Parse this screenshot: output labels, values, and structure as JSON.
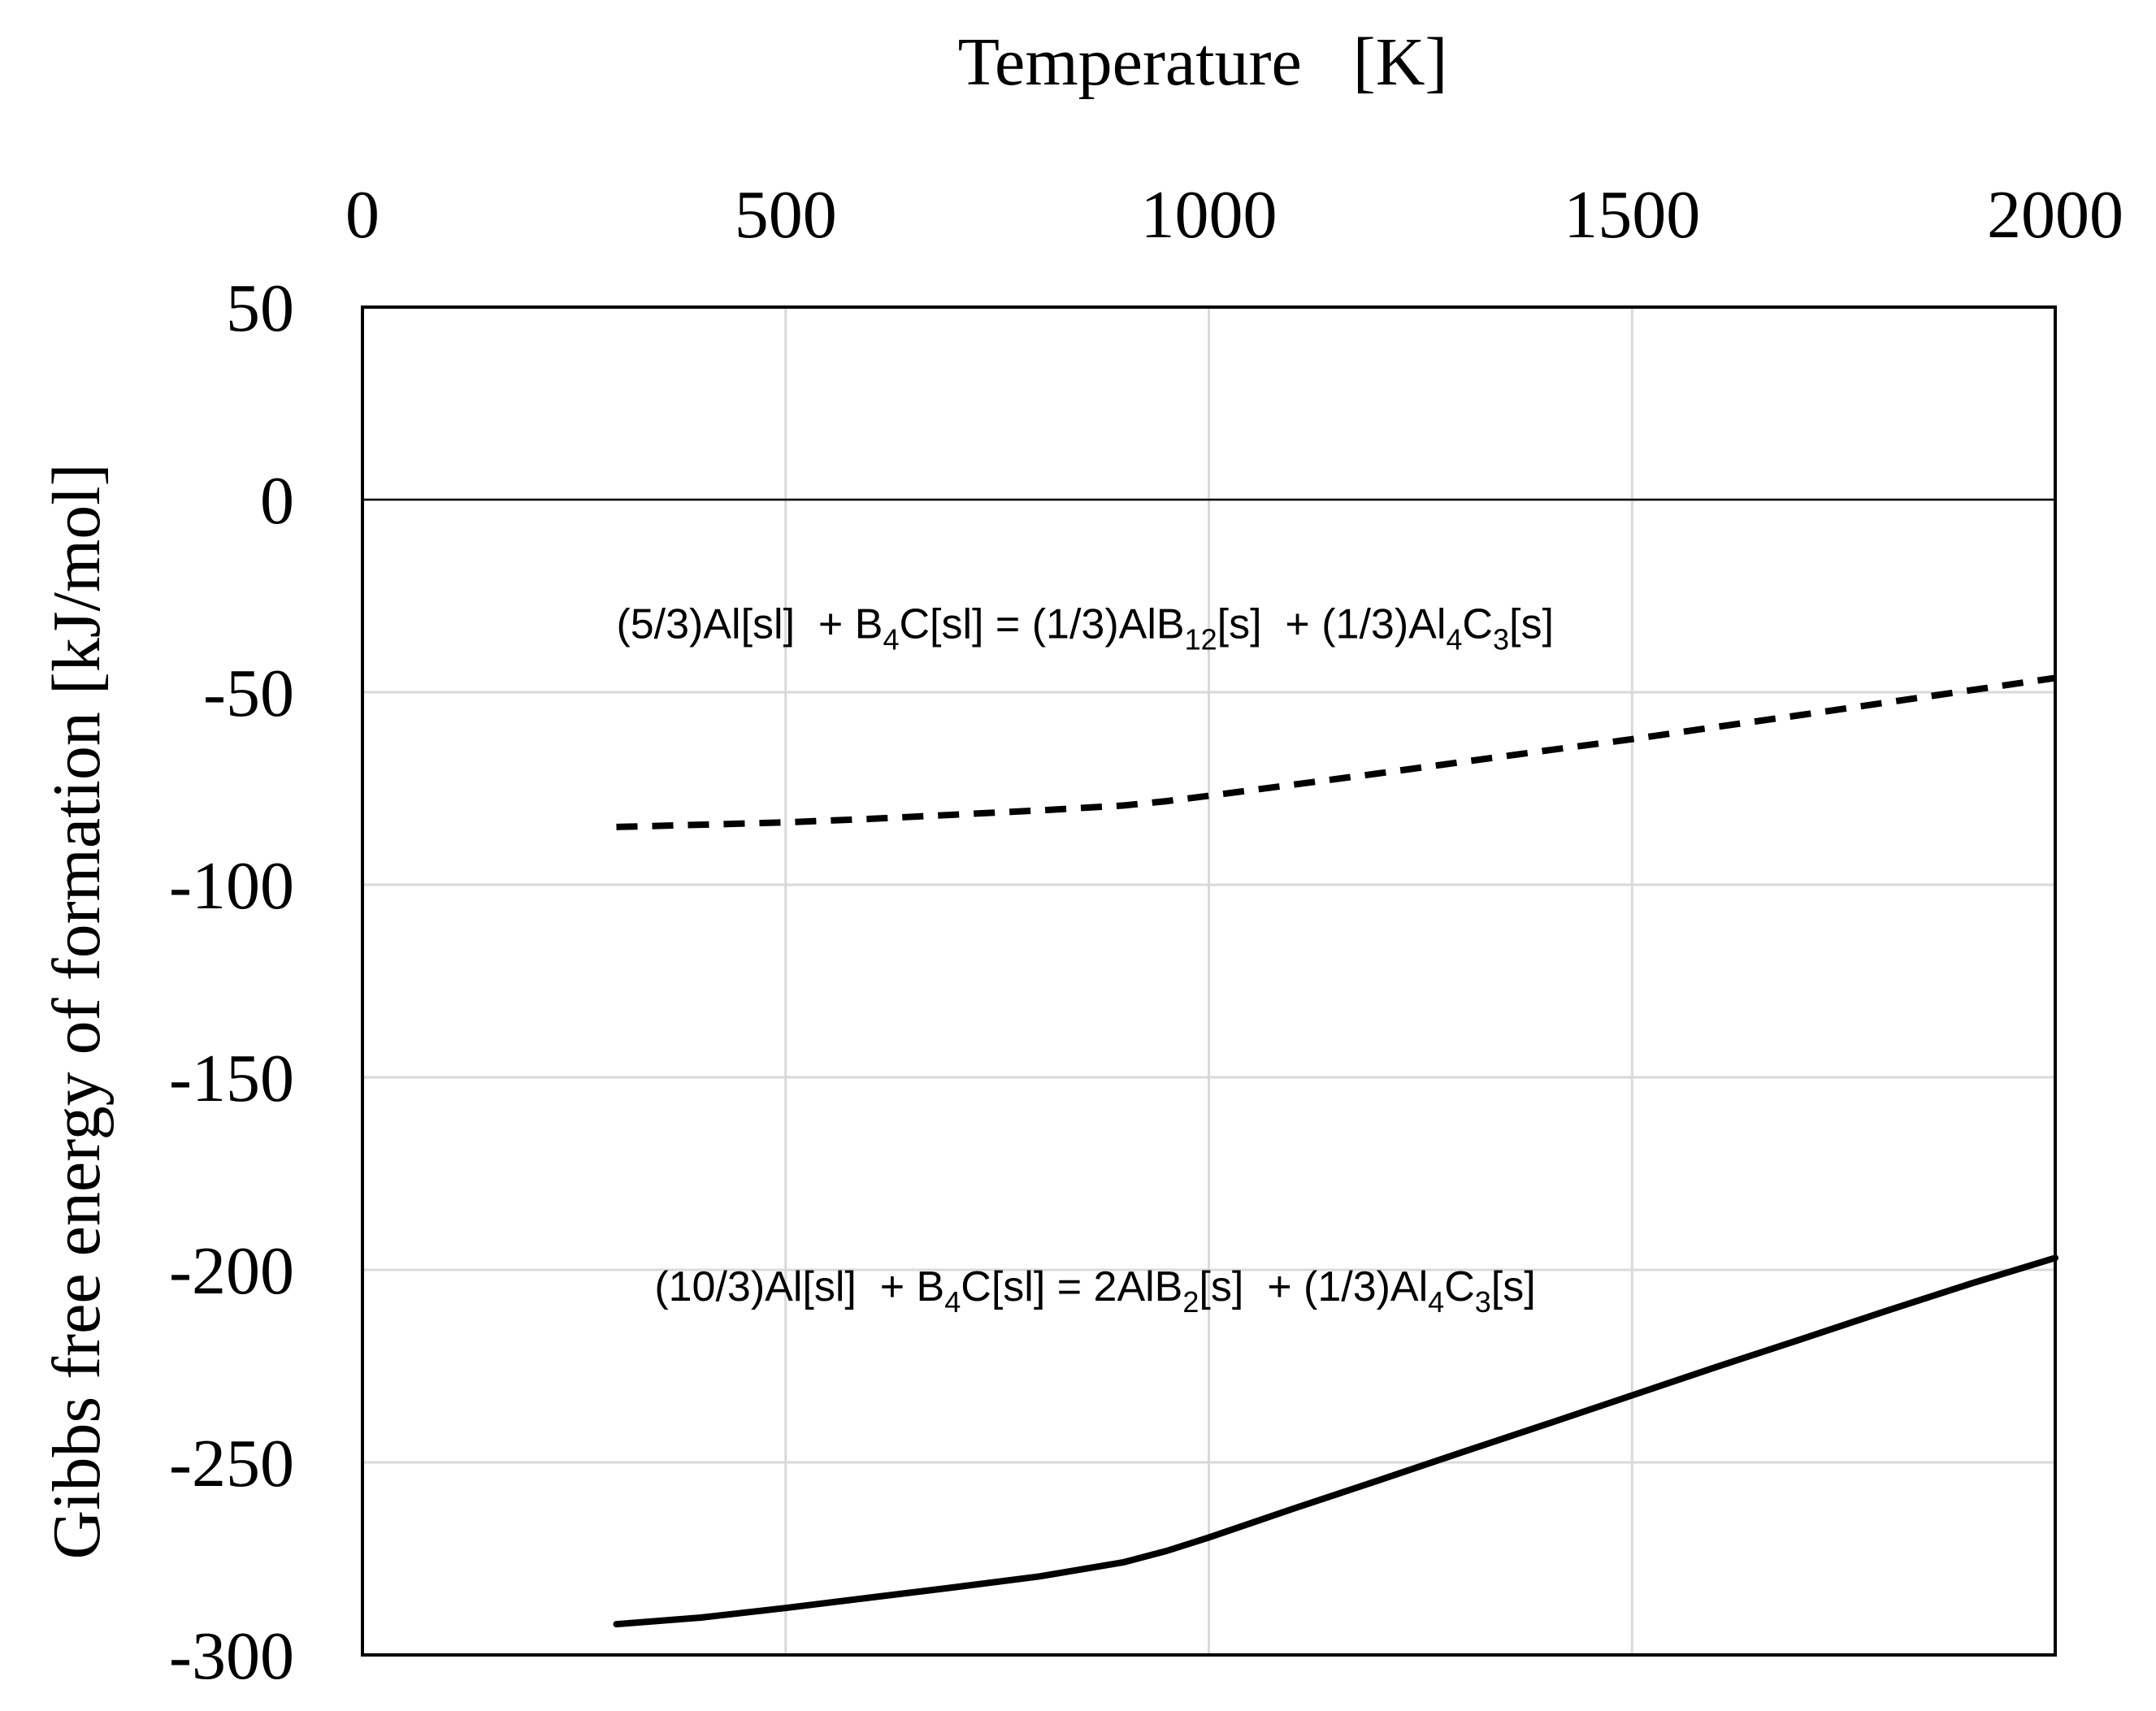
{
  "chart_data": {
    "type": "line",
    "title": "",
    "xlabel": "Temperature   [K]",
    "ylabel": "Gibbs free energy of formation [kJ/mol]",
    "xlim": [
      0,
      2000
    ],
    "ylim": [
      -300,
      50
    ],
    "x_ticks": [
      0,
      500,
      1000,
      1500,
      2000
    ],
    "y_ticks": [
      50,
      0,
      -50,
      -100,
      -150,
      -200,
      -250,
      -300
    ],
    "x_tick_labels": [
      "0",
      "500",
      "1000",
      "1500",
      "2000"
    ],
    "y_tick_labels": [
      "50",
      "0",
      "-50",
      "-100",
      "-150",
      "-200",
      "-250",
      "-300"
    ],
    "xaxis_position": "top",
    "grid": true,
    "zero_line": true,
    "series": [
      {
        "name": "(5/3)Al[sl] + B4C[sl] = (1/3)AlB12[s] + (1/3)Al4C3[s]",
        "style": "dashed",
        "x": [
          300,
          400,
          500,
          600,
          700,
          800,
          900,
          950,
          1000,
          1100,
          1200,
          1300,
          1400,
          1500,
          1600,
          1700,
          1800,
          1900,
          2000
        ],
        "y": [
          -85,
          -84.4,
          -83.8,
          -82.9,
          -81.8,
          -80.7,
          -79.4,
          -78.3,
          -76.9,
          -74,
          -71.1,
          -68.1,
          -65.1,
          -62.2,
          -59,
          -55.9,
          -52.7,
          -49.5,
          -46.3
        ]
      },
      {
        "name": "(10/3)Al[sl] + B4C[sl] = 2AlB2[s] + (1/3)Al4C3[s]",
        "style": "solid",
        "x": [
          300,
          400,
          500,
          600,
          700,
          800,
          900,
          950,
          1000,
          1100,
          1200,
          1300,
          1400,
          1500,
          1600,
          1700,
          1800,
          1900,
          2000
        ],
        "y": [
          -292,
          -290.3,
          -287.8,
          -285.1,
          -282.4,
          -279.6,
          -275.9,
          -273,
          -269.5,
          -262,
          -254.7,
          -247.3,
          -240,
          -232.6,
          -225.2,
          -218,
          -210.7,
          -203.6,
          -196.9
        ]
      }
    ],
    "annotations": [
      {
        "series_index": 0,
        "x": 300,
        "y": -36,
        "parts": [
          {
            "t": "(5/3)Al[sl]  + B"
          },
          {
            "t": "4",
            "sub": true
          },
          {
            "t": "C[sl] = (1/3)AlB"
          },
          {
            "t": "12",
            "sub": true
          },
          {
            "t": "[s]  + (1/3)Al"
          },
          {
            "t": "4",
            "sub": true
          },
          {
            "t": "C"
          },
          {
            "t": "3",
            "sub": true
          },
          {
            "t": "[s]"
          }
        ]
      },
      {
        "series_index": 1,
        "x": 345,
        "y": -208,
        "parts": [
          {
            "t": "(10/3)Al[sl]  + B"
          },
          {
            "t": "4",
            "sub": true
          },
          {
            "t": "C[sl] = 2AlB"
          },
          {
            "t": "2",
            "sub": true
          },
          {
            "t": "[s]  + (1/3)Al"
          },
          {
            "t": "4",
            "sub": true
          },
          {
            "t": "C"
          },
          {
            "t": "3",
            "sub": true
          },
          {
            "t": "[s]"
          }
        ]
      }
    ],
    "colors": {
      "line": "#000000",
      "grid": "#d9d9d9",
      "frame": "#000000",
      "background": "#ffffff"
    }
  }
}
